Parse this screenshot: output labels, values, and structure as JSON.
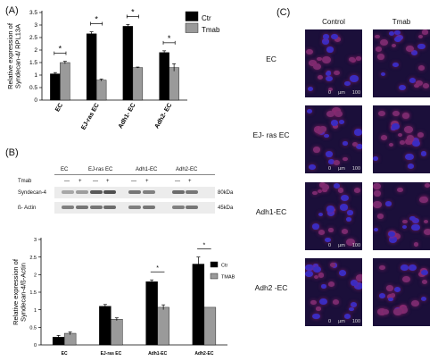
{
  "panel_labels": {
    "a": "(A)",
    "b": "(B)",
    "c": "(C)"
  },
  "chart_data": [
    {
      "id": "A",
      "type": "bar",
      "categories": [
        "EC",
        "EJ-ras EC",
        "Adh1- EC",
        "Adh2- EC"
      ],
      "series": [
        {
          "name": "Ctr",
          "color": "#000000",
          "values": [
            1.05,
            2.65,
            2.95,
            1.9
          ],
          "errors": [
            0.05,
            0.08,
            0.07,
            0.07
          ]
        },
        {
          "name": "Tmab",
          "color": "#9a9a9a",
          "values": [
            1.5,
            0.8,
            1.3,
            1.3
          ],
          "errors": [
            0.05,
            0.04,
            0.02,
            0.15
          ]
        }
      ],
      "ylabel": "Relative expression of Syndecan-4/ RPL13A",
      "ylim": [
        0,
        3.5
      ],
      "yticks": [
        "0",
        "0.5",
        "1",
        "1.5",
        "2",
        "2.5",
        "3",
        "3.5"
      ],
      "significance": [
        "*",
        "*",
        "*",
        "*"
      ],
      "legend_position": "top-right",
      "grid": false
    },
    {
      "id": "B",
      "type": "bar",
      "categories": [
        "EC",
        "EJ-ras EC",
        "Adh1-EC",
        "Adh2-EC"
      ],
      "series": [
        {
          "name": "Ctr",
          "color": "#000000",
          "values": [
            0.22,
            1.1,
            1.8,
            2.3
          ],
          "errors": [
            0.05,
            0.05,
            0.05,
            0.2
          ]
        },
        {
          "name": "TMAB",
          "color": "#9a9a9a",
          "values": [
            0.33,
            0.73,
            1.07,
            1.07
          ],
          "errors": [
            0.04,
            0.04,
            0.07,
            0
          ]
        }
      ],
      "ylabel": "Relative expression of Syndecan-4/ß-Actin",
      "ylim": [
        0,
        3
      ],
      "yticks": [
        "0",
        "0.5",
        "1",
        "1.5",
        "2",
        "2.5",
        "3"
      ],
      "significance": [
        "",
        "",
        "*",
        "*"
      ],
      "legend_position": "top-right",
      "grid": false
    }
  ],
  "blot": {
    "groups": [
      "EC",
      "EJ-ras EC",
      "Adh1-EC",
      "Adh2-EC"
    ],
    "tmab_label": "Tmab",
    "lane_signs": [
      "—",
      "+",
      "—",
      "+",
      "—",
      "+",
      "—",
      "+"
    ],
    "rows": [
      {
        "label": "Syndecan-4",
        "size": "80kDa"
      },
      {
        "label": "ß- Actin",
        "size": "45kDa"
      }
    ]
  },
  "ihc": {
    "columns": [
      "Control",
      "Tmab"
    ],
    "rows": [
      "EC",
      "EJ- ras EC",
      "Adh1-EC",
      "Adh2 -EC"
    ],
    "scale": [
      "0",
      "µm",
      "100"
    ]
  }
}
